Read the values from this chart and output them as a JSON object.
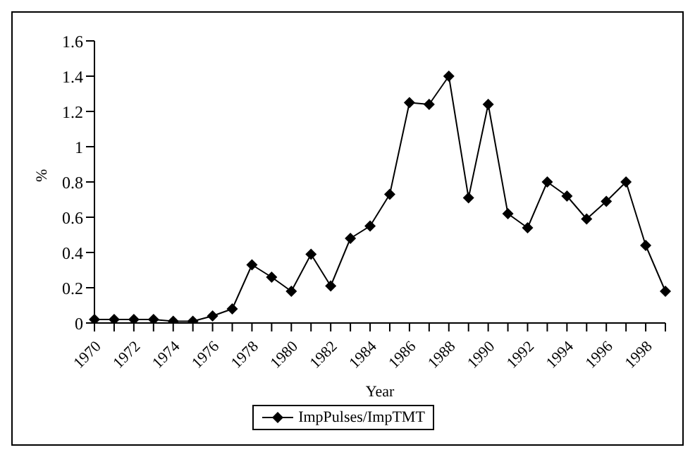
{
  "chart_data": {
    "type": "line",
    "xlabel": "Year",
    "ylabel": "%",
    "categories": [
      "1970",
      null,
      "1972",
      null,
      "1974",
      null,
      "1976",
      null,
      "1978",
      null,
      "1980",
      null,
      "1982",
      null,
      "1984",
      null,
      "1986",
      null,
      "1988",
      null,
      "1990",
      null,
      "1992",
      null,
      "1994",
      null,
      "1996",
      null,
      "1998",
      null
    ],
    "series": [
      {
        "name": "ImpPulses/ImpTMT",
        "color": "#000000",
        "values": [
          0.02,
          0.02,
          0.02,
          0.02,
          0.01,
          0.01,
          0.04,
          0.08,
          0.33,
          0.26,
          0.18,
          0.39,
          0.21,
          0.48,
          0.55,
          0.73,
          1.25,
          1.24,
          1.4,
          0.71,
          1.24,
          0.62,
          0.54,
          0.8,
          0.72,
          0.59,
          0.69,
          0.8,
          0.44,
          0.18
        ]
      }
    ],
    "ylim": [
      0,
      1.6
    ],
    "yticks": [
      0,
      0.2,
      0.4,
      0.6,
      0.8,
      1,
      1.2,
      1.4,
      1.6
    ],
    "grid": false,
    "legend": "bottom",
    "marker": "diamond",
    "line_style": "solid"
  }
}
